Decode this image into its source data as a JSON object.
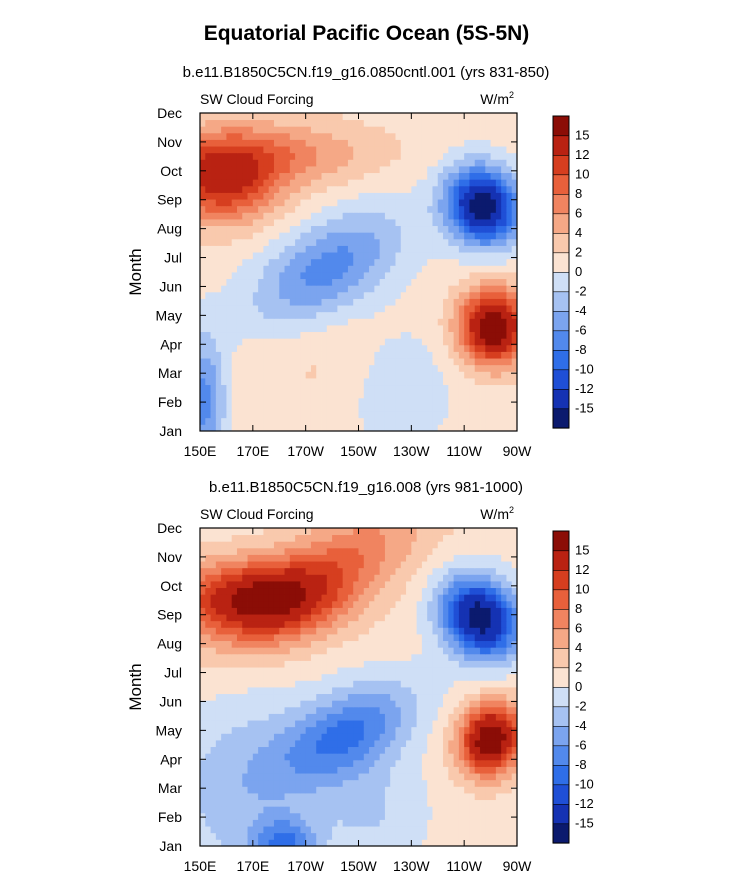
{
  "page_title": "Equatorial Pacific Ocean (5S-5N)",
  "colors": {
    "neg": [
      "#0b1a6e",
      "#1532b3",
      "#1f4fd6",
      "#2f6ee8",
      "#5289ec",
      "#7ba4ef",
      "#a6c2f2",
      "#cfdff6"
    ],
    "pos": [
      "#fbe3d2",
      "#f9c9ad",
      "#f5a886",
      "#f08460",
      "#e8603b",
      "#d63e1f",
      "#b92212",
      "#8b0d06"
    ]
  },
  "chart_data": [
    {
      "type": "heatmap",
      "subtitle": "b.e11.B1850C5CN.f19_g16.0850cntl.001 (yrs 831-850)",
      "left_label": "SW Cloud Forcing",
      "units_main": "W/m",
      "units_sup": "2",
      "xlabel": "",
      "ylabel": "Month",
      "x_ticks": [
        "150E",
        "170E",
        "170W",
        "150W",
        "130W",
        "110W",
        "90W"
      ],
      "x_range_lon": [
        150,
        270
      ],
      "y_ticks": [
        "Jan",
        "Feb",
        "Mar",
        "Apr",
        "May",
        "Jun",
        "Jul",
        "Aug",
        "Sep",
        "Oct",
        "Nov",
        "Dec"
      ],
      "colorbar_labels": [
        "15",
        "12",
        "10",
        "8",
        "6",
        "4",
        "2",
        "0",
        "-2",
        "-4",
        "-6",
        "-8",
        "-10",
        "-12",
        "-15"
      ],
      "contour_levels": [
        -15,
        -12,
        -10,
        -8,
        -6,
        -4,
        -2,
        0,
        2,
        4,
        6,
        8,
        10,
        12,
        15
      ],
      "features": [
        {
          "name": "coastal-negative-core",
          "lon": 257,
          "month": 8.8,
          "value": -18,
          "sx": 10,
          "sy": 0.9,
          "rot": 38
        },
        {
          "name": "coastal-positive-core",
          "lon": 261,
          "month": 4.6,
          "value": 17,
          "sx": 9,
          "sy": 0.9,
          "rot": 38
        },
        {
          "name": "west-pacific-oct-maximum",
          "lon": 158,
          "month": 9.6,
          "value": 11,
          "sx": 15,
          "sy": 1.0,
          "rot": 0
        },
        {
          "name": "nov-warm-band",
          "lon": 175,
          "month": 10.6,
          "value": 6,
          "sx": 28,
          "sy": 0.8,
          "rot": 0
        },
        {
          "name": "central-jul-minimum",
          "lon": 198,
          "month": 6.6,
          "value": -8,
          "sx": 22,
          "sy": 1.1,
          "rot": -28
        },
        {
          "name": "far-west-mar-minimum",
          "lon": 151,
          "month": 2.0,
          "value": -8,
          "sx": 6,
          "sy": 1.6,
          "rot": 0
        },
        {
          "name": "central-spring-positive",
          "lon": 198,
          "month": 3.5,
          "value": 1.5,
          "sx": 20,
          "sy": 1.4,
          "rot": 0
        },
        {
          "name": "feb-apr-east-negative",
          "lon": 225,
          "month": 2.5,
          "value": -3,
          "sx": 14,
          "sy": 1.5,
          "rot": 0
        }
      ],
      "background_value": 1
    },
    {
      "type": "heatmap",
      "subtitle": "b.e11.B1850C5CN.f19_g16.008 (yrs 981-1000)",
      "left_label": "SW Cloud Forcing",
      "units_main": "W/m",
      "units_sup": "2",
      "xlabel": "",
      "ylabel": "Month",
      "x_ticks": [
        "150E",
        "170E",
        "170W",
        "150W",
        "130W",
        "110W",
        "90W"
      ],
      "x_range_lon": [
        150,
        270
      ],
      "y_ticks": [
        "Jan",
        "Feb",
        "Mar",
        "Apr",
        "May",
        "Jun",
        "Jul",
        "Aug",
        "Sep",
        "Oct",
        "Nov",
        "Dec"
      ],
      "colorbar_labels": [
        "15",
        "12",
        "10",
        "8",
        "6",
        "4",
        "2",
        "0",
        "-2",
        "-4",
        "-6",
        "-8",
        "-10",
        "-12",
        "-15"
      ],
      "contour_levels": [
        -15,
        -12,
        -10,
        -8,
        -6,
        -4,
        -2,
        0,
        2,
        4,
        6,
        8,
        10,
        12,
        15
      ],
      "features": [
        {
          "name": "coastal-negative-core",
          "lon": 256,
          "month": 8.9,
          "value": -18,
          "sx": 11,
          "sy": 0.9,
          "rot": 38
        },
        {
          "name": "coastal-positive-core",
          "lon": 260,
          "month": 4.7,
          "value": 17,
          "sx": 8,
          "sy": 0.9,
          "rot": 38
        },
        {
          "name": "west-pacific-oct-maximum",
          "lon": 168,
          "month": 9.6,
          "value": 12,
          "sx": 20,
          "sy": 0.9,
          "rot": 0
        },
        {
          "name": "nov-warm-band",
          "lon": 195,
          "month": 10.2,
          "value": 8,
          "sx": 30,
          "sy": 1.1,
          "rot": -30
        },
        {
          "name": "central-may-minimum",
          "lon": 205,
          "month": 4.9,
          "value": -9,
          "sx": 20,
          "sy": 1.0,
          "rot": -25
        },
        {
          "name": "feb-minimum",
          "lon": 182,
          "month": 1.1,
          "value": -8,
          "sx": 8,
          "sy": 0.6,
          "rot": 0
        },
        {
          "name": "west-negative-region",
          "lon": 165,
          "month": 3.0,
          "value": -4,
          "sx": 20,
          "sy": 2.5,
          "rot": 0
        },
        {
          "name": "mar-apr-east-negative",
          "lon": 215,
          "month": 2.2,
          "value": -3,
          "sx": 15,
          "sy": 1.5,
          "rot": 0
        }
      ],
      "background_value": 1
    }
  ]
}
